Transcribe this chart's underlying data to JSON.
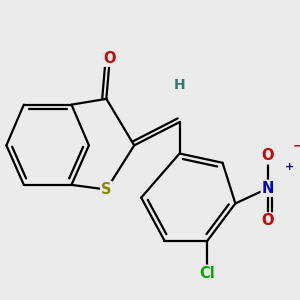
{
  "bg_color": "#ebebeb",
  "bond_color": "#000000",
  "bond_width": 1.6,
  "atoms": {
    "S": {
      "color": "#888800",
      "fontsize": 10.5,
      "fontweight": "bold"
    },
    "O": {
      "color": "#cc0000",
      "fontsize": 10.5,
      "fontweight": "bold"
    },
    "N": {
      "color": "#0000cc",
      "fontsize": 10.5,
      "fontweight": "bold"
    },
    "Cl": {
      "color": "#00aa00",
      "fontsize": 10.5,
      "fontweight": "bold"
    },
    "H": {
      "color": "#337777",
      "fontsize": 10.0,
      "fontweight": "bold"
    }
  },
  "figsize": [
    3.0,
    3.0
  ],
  "dpi": 100
}
